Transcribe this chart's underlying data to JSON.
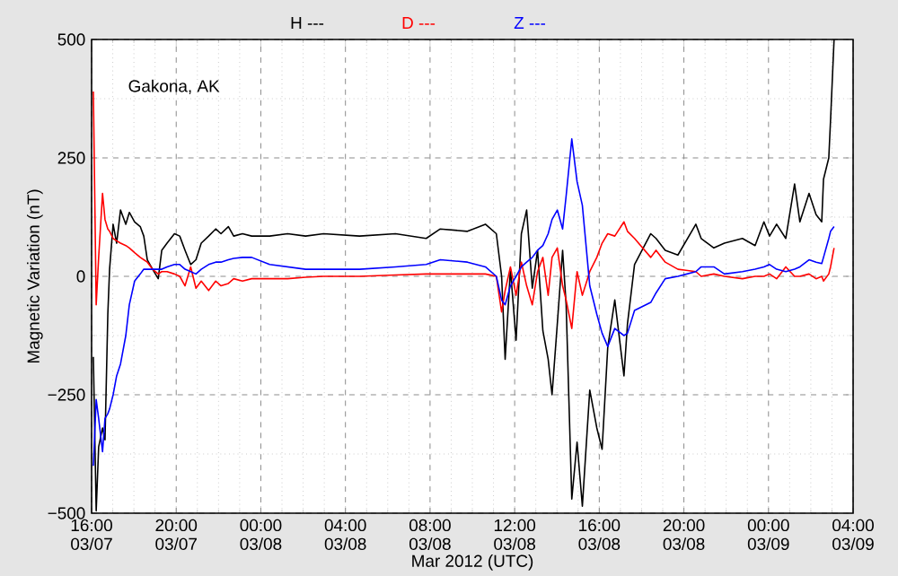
{
  "chart_data": {
    "type": "line",
    "ylabel": "Magnetic Variation (nT)",
    "xlabel": "Mar 2012 (UTC)",
    "annotations": [
      "Gakona, AK"
    ],
    "legend": "top",
    "grid": true,
    "xlim": [
      "2012-03-07T16:00",
      "2012-03-09T04:00"
    ],
    "xticks": [
      {
        "value": "2012-03-07T16:00",
        "label": "16:00 03/07"
      },
      {
        "value": "2012-03-07T20:00",
        "label": "20:00 03/07"
      },
      {
        "value": "2012-03-08T00:00",
        "label": "00:00 03/08"
      },
      {
        "value": "2012-03-08T04:00",
        "label": "04:00 03/08"
      },
      {
        "value": "2012-03-08T08:00",
        "label": "08:00 03/08"
      },
      {
        "value": "2012-03-08T12:00",
        "label": "12:00 03/08"
      },
      {
        "value": "2012-03-08T16:00",
        "label": "16:00 03/08"
      },
      {
        "value": "2012-03-08T20:00",
        "label": "20:00 03/08"
      },
      {
        "value": "2012-03-09T00:00",
        "label": "00:00 03/09"
      },
      {
        "value": "2012-03-09T04:00",
        "label": "04:00 03/09"
      }
    ],
    "ylim": [
      -500,
      500
    ],
    "yticks": [
      {
        "value": -500,
        "label": "−500"
      },
      {
        "value": -250,
        "label": "−250"
      },
      0,
      250,
      500
    ],
    "x": [
      "2012-03-07T16:05",
      "2012-03-07T16:13",
      "2012-03-07T16:20",
      "2012-03-07T16:31",
      "2012-03-07T16:38",
      "2012-03-07T16:46",
      "2012-03-07T16:51",
      "2012-03-07T17:01",
      "2012-03-07T17:11",
      "2012-03-07T17:22",
      "2012-03-07T17:37",
      "2012-03-07T17:47",
      "2012-03-07T18:02",
      "2012-03-07T18:18",
      "2012-03-07T18:28",
      "2012-03-07T18:38",
      "2012-03-07T18:53",
      "2012-03-07T19:09",
      "2012-03-07T19:19",
      "2012-03-07T19:34",
      "2012-03-07T19:55",
      "2012-03-07T20:10",
      "2012-03-07T20:25",
      "2012-03-07T20:41",
      "2012-03-07T20:56",
      "2012-03-07T21:11",
      "2012-03-07T21:32",
      "2012-03-07T21:52",
      "2012-03-07T22:07",
      "2012-03-07T22:28",
      "2012-03-07T22:43",
      "2012-03-07T23:08",
      "2012-03-07T23:34",
      "2012-03-08T00:25",
      "2012-03-08T01:16",
      "2012-03-08T02:07",
      "2012-03-08T02:58",
      "2012-03-08T04:40",
      "2012-03-08T06:22",
      "2012-03-08T07:49",
      "2012-03-08T08:29",
      "2012-03-08T09:46",
      "2012-03-08T10:37",
      "2012-03-08T11:08",
      "2012-03-08T11:23",
      "2012-03-08T11:33",
      "2012-03-08T11:48",
      "2012-03-08T12:04",
      "2012-03-08T12:19",
      "2012-03-08T12:34",
      "2012-03-08T12:50",
      "2012-03-08T13:05",
      "2012-03-08T13:20",
      "2012-03-08T13:35",
      "2012-03-08T13:46",
      "2012-03-08T14:01",
      "2012-03-08T14:16",
      "2012-03-08T14:26",
      "2012-03-08T14:42",
      "2012-03-08T14:57",
      "2012-03-08T15:12",
      "2012-03-08T15:33",
      "2012-03-08T15:53",
      "2012-03-08T16:08",
      "2012-03-08T16:24",
      "2012-03-08T16:44",
      "2012-03-08T17:10",
      "2012-03-08T17:20",
      "2012-03-08T17:40",
      "2012-03-08T18:26",
      "2012-03-08T18:41",
      "2012-03-08T19:07",
      "2012-03-08T19:43",
      "2012-03-08T20:34",
      "2012-03-08T20:49",
      "2012-03-08T21:25",
      "2012-03-08T21:55",
      "2012-03-08T22:46",
      "2012-03-08T23:22",
      "2012-03-08T23:47",
      "2012-03-09T00:03",
      "2012-03-09T00:23",
      "2012-03-09T00:49",
      "2012-03-09T01:14",
      "2012-03-09T01:29",
      "2012-03-09T01:55",
      "2012-03-09T02:15",
      "2012-03-09T02:31",
      "2012-03-09T02:36",
      "2012-03-09T02:51",
      "2012-03-09T02:56",
      "2012-03-09T03:06"
    ],
    "series": [
      {
        "name": "H ---",
        "color": "#000000",
        "values": [
          -170,
          -495,
          -360,
          -320,
          -345,
          -80,
          15,
          110,
          70,
          140,
          110,
          135,
          115,
          105,
          85,
          35,
          15,
          -5,
          55,
          70,
          90,
          85,
          55,
          25,
          35,
          70,
          85,
          100,
          90,
          105,
          85,
          90,
          85,
          85,
          90,
          85,
          90,
          85,
          90,
          80,
          100,
          95,
          110,
          90,
          0,
          -175,
          15,
          -135,
          90,
          140,
          -25,
          55,
          -115,
          -175,
          -250,
          -100,
          55,
          -60,
          -470,
          -350,
          -485,
          -240,
          -320,
          -365,
          -150,
          -50,
          -210,
          -100,
          25,
          90,
          80,
          55,
          45,
          110,
          80,
          60,
          70,
          80,
          65,
          115,
          85,
          110,
          80,
          195,
          115,
          175,
          130,
          115,
          205,
          250,
          330,
          500
        ]
      },
      {
        "name": "D ---",
        "color": "#ff0000",
        "values": [
          390,
          -60,
          40,
          175,
          120,
          100,
          95,
          80,
          75,
          70,
          65,
          60,
          50,
          40,
          35,
          30,
          15,
          5,
          10,
          10,
          5,
          0,
          -20,
          20,
          -25,
          -10,
          -30,
          -10,
          -20,
          -15,
          -5,
          -10,
          -5,
          -5,
          -5,
          -2,
          0,
          0,
          3,
          5,
          5,
          5,
          5,
          0,
          -75,
          -30,
          20,
          -40,
          30,
          -20,
          -60,
          10,
          40,
          -40,
          40,
          60,
          -20,
          -50,
          -110,
          10,
          -40,
          10,
          40,
          70,
          90,
          85,
          115,
          95,
          80,
          40,
          55,
          30,
          15,
          10,
          0,
          5,
          0,
          -5,
          0,
          0,
          5,
          -5,
          20,
          0,
          0,
          5,
          -5,
          0,
          -10,
          5,
          20,
          60
        ]
      },
      {
        "name": "Z ---",
        "color": "#0000ff",
        "values": [
          -400,
          -260,
          -300,
          -370,
          -300,
          -290,
          -280,
          -250,
          -210,
          -185,
          -125,
          -60,
          -10,
          5,
          15,
          15,
          15,
          15,
          15,
          20,
          25,
          25,
          15,
          10,
          5,
          15,
          25,
          30,
          30,
          35,
          38,
          40,
          40,
          25,
          20,
          15,
          15,
          15,
          20,
          25,
          35,
          30,
          20,
          0,
          -50,
          -60,
          -20,
          0,
          20,
          30,
          40,
          55,
          65,
          90,
          120,
          140,
          100,
          170,
          290,
          200,
          150,
          -20,
          -80,
          -120,
          -148,
          -110,
          -125,
          -120,
          -72,
          -55,
          -35,
          -5,
          0,
          10,
          20,
          20,
          5,
          10,
          15,
          20,
          25,
          15,
          10,
          15,
          20,
          35,
          30,
          27,
          40,
          80,
          95,
          105
        ]
      }
    ]
  }
}
